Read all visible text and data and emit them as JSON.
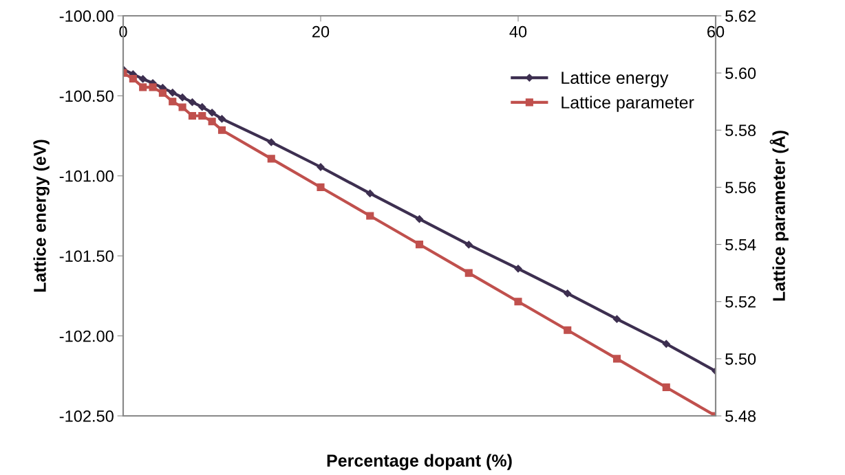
{
  "chart_data": {
    "type": "line",
    "xlabel": "Percentage dopant (%)",
    "ylabel": "Lattice energy (eV)",
    "y2label": "Lattice parameter (Å)",
    "x": [
      0,
      1,
      2,
      3,
      4,
      5,
      6,
      7,
      8,
      9,
      10,
      15,
      20,
      25,
      30,
      35,
      40,
      45,
      50,
      55,
      60
    ],
    "series": [
      {
        "name": "Lattice energy",
        "color": "#3d2f50",
        "marker": "diamond",
        "values": [
          -100.335,
          -100.365,
          -100.395,
          -100.42,
          -100.45,
          -100.48,
          -100.51,
          -100.54,
          -100.57,
          -100.605,
          -100.644,
          -100.79,
          -100.945,
          -101.11,
          -101.27,
          -101.43,
          -101.58,
          -101.735,
          -101.895,
          -102.05,
          -102.22
        ]
      },
      {
        "name": "Lattice parameter",
        "color": "#c0504d",
        "marker": "square",
        "axis": "y2",
        "values": [
          5.6,
          5.598,
          5.595,
          5.595,
          5.593,
          5.59,
          5.588,
          5.585,
          5.585,
          5.583,
          5.58,
          5.57,
          5.56,
          5.55,
          5.54,
          5.53,
          5.52,
          5.51,
          5.5,
          5.49,
          5.48
        ]
      }
    ],
    "xlim": [
      0,
      60
    ],
    "xticks": [
      0,
      20,
      40,
      60
    ],
    "ylim": [
      -102.5,
      -100
    ],
    "yticks": [
      {
        "value": -102.5,
        "label": "-102.50"
      },
      {
        "value": -102,
        "label": "-102.00"
      },
      {
        "value": -101.5,
        "label": "-101.50"
      },
      {
        "value": -101,
        "label": "-101.00"
      },
      {
        "value": -100.5,
        "label": "-100.50"
      },
      {
        "value": -100,
        "label": "-100.00"
      }
    ],
    "y2lim": [
      5.48,
      5.62
    ],
    "y2ticks": [
      {
        "value": 5.48,
        "label": "5.48"
      },
      {
        "value": 5.5,
        "label": "5.50"
      },
      {
        "value": 5.52,
        "label": "5.52"
      },
      {
        "value": 5.54,
        "label": "5.54"
      },
      {
        "value": 5.56,
        "label": "5.56"
      },
      {
        "value": 5.58,
        "label": "5.58"
      },
      {
        "value": 5.6,
        "label": "5.60"
      },
      {
        "value": 5.62,
        "label": "5.62"
      }
    ],
    "grid": false,
    "legend": "top right",
    "line_style": "solid"
  }
}
